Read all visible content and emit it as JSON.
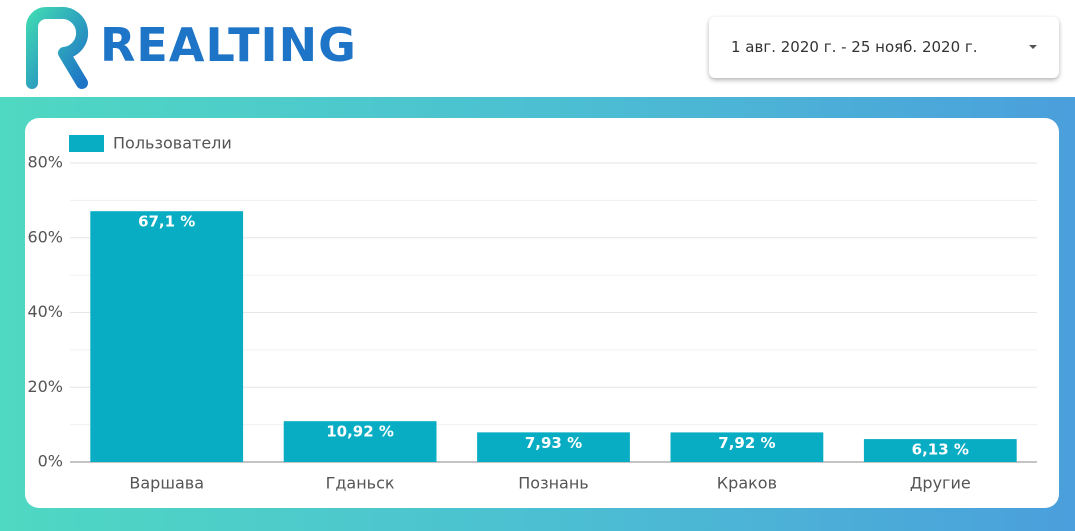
{
  "header": {
    "logo_text": "REALTING",
    "date_range": "1 авг. 2020 г. - 25 нояб. 2020 г."
  },
  "chart_data": {
    "type": "bar",
    "series": [
      {
        "name": "Пользователи",
        "color": "#08adc3",
        "values": [
          67.1,
          10.92,
          7.93,
          7.92,
          6.13
        ],
        "value_labels": [
          "67,1 %",
          "10,92 %",
          "7,93 %",
          "7,92 %",
          "6,13 %"
        ]
      }
    ],
    "categories": [
      "Варшава",
      "Гданьск",
      "Познань",
      "Краков",
      "Другие"
    ],
    "ylim": [
      0,
      80
    ],
    "yticks": [
      {
        "value": 0,
        "label": "0%"
      },
      {
        "value": 20,
        "label": "20%"
      },
      {
        "value": 40,
        "label": "40%"
      },
      {
        "value": 60,
        "label": "60%"
      },
      {
        "value": 80,
        "label": "80%"
      }
    ],
    "minor_yticks": [
      10,
      30,
      50,
      70
    ],
    "grid": true,
    "legend": "top-left"
  }
}
